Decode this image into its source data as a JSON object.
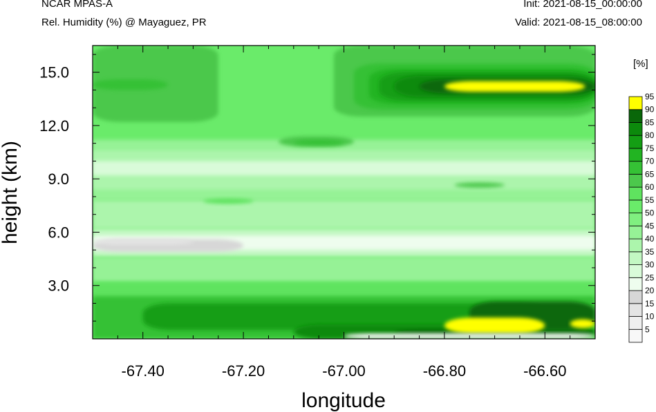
{
  "header": {
    "model": "NCAR MPAS-A",
    "subtitle": "Rel. Humidity (%) @ Mayaguez, PR",
    "init": "Init: 2021-08-15_00:00:00",
    "valid": "Valid: 2021-08-15_08:00:00"
  },
  "chart_data": {
    "type": "heatmap",
    "title": "Rel. Humidity (%) @ Mayaguez, PR",
    "xlabel": "longitude",
    "ylabel": "height (km)",
    "xlim": [
      -67.5,
      -66.5
    ],
    "ylim": [
      0,
      16.5
    ],
    "xticks": [
      -67.4,
      -67.2,
      -67.0,
      -66.8,
      -66.6
    ],
    "xtick_labels": [
      "-67.40",
      "-67.20",
      "-67.00",
      "-66.80",
      "-66.60"
    ],
    "yticks": [
      3,
      6,
      9,
      12,
      15
    ],
    "ytick_labels": [
      "3.0",
      "6.0",
      "9.0",
      "12.0",
      "15.0"
    ],
    "colorbar": {
      "units": "[%]",
      "levels": [
        5,
        10,
        15,
        20,
        25,
        30,
        35,
        40,
        45,
        50,
        55,
        60,
        65,
        70,
        75,
        80,
        85,
        90,
        95
      ],
      "colors": [
        "#f8f8f8",
        "#efefef",
        "#e4e4e4",
        "#d7d7d7",
        "#eefdee",
        "#d9fbd9",
        "#c3f8c3",
        "#acf5ac",
        "#96f296",
        "#80ef80",
        "#6aeb6a",
        "#5fe35f",
        "#4cc84c",
        "#35c135",
        "#22b422",
        "#149e14",
        "#0c8a0c",
        "#096709",
        "#ffff00"
      ]
    },
    "regions": [
      {
        "x": [
          -67.5,
          -66.5
        ],
        "y": [
          0,
          16.5
        ],
        "rh": 55
      },
      {
        "x": [
          -67.5,
          -66.5
        ],
        "y": [
          7.8,
          11.2
        ],
        "rh": 45
      },
      {
        "x": [
          -67.5,
          -66.5
        ],
        "y": [
          8.4,
          10.6
        ],
        "rh": 40
      },
      {
        "x": [
          -67.5,
          -66.5
        ],
        "y": [
          9.2,
          10.0
        ],
        "rh": 30
      },
      {
        "x": [
          -67.5,
          -66.5
        ],
        "y": [
          6.2,
          7.8
        ],
        "rh": 40
      },
      {
        "x": [
          -67.5,
          -66.5
        ],
        "y": [
          4.6,
          6.2
        ],
        "rh": 35
      },
      {
        "x": [
          -67.5,
          -66.5
        ],
        "y": [
          5.0,
          5.8
        ],
        "rh": 25
      },
      {
        "x": [
          -67.5,
          -67.2
        ],
        "y": [
          4.9,
          5.6
        ],
        "rh": 20
      },
      {
        "x": [
          -67.5,
          -67.3
        ],
        "y": [
          5.3,
          5.6
        ],
        "rh": 15
      },
      {
        "x": [
          -67.5,
          -66.5
        ],
        "y": [
          3.2,
          4.6
        ],
        "rh": 45
      },
      {
        "x": [
          -67.5,
          -66.5
        ],
        "y": [
          2.2,
          3.2
        ],
        "rh": 60
      },
      {
        "x": [
          -67.5,
          -66.5
        ],
        "y": [
          0,
          2.4
        ],
        "rh": 70
      },
      {
        "x": [
          -67.4,
          -66.6
        ],
        "y": [
          0.5,
          2.0
        ],
        "rh": 80
      },
      {
        "x": [
          -67.1,
          -66.5
        ],
        "y": [
          0,
          0.8
        ],
        "rh": 85
      },
      {
        "x": [
          -66.9,
          -66.5
        ],
        "y": [
          0.2,
          0.5
        ],
        "rh": 90
      },
      {
        "x": [
          -66.75,
          -66.5
        ],
        "y": [
          0.5,
          2.1
        ],
        "rh": 90
      },
      {
        "x": [
          -66.8,
          -66.6
        ],
        "y": [
          0.3,
          1.2
        ],
        "rh": 95
      },
      {
        "x": [
          -66.55,
          -66.5
        ],
        "y": [
          0.6,
          1.1
        ],
        "rh": 95
      },
      {
        "x": [
          -67.0,
          -66.5
        ],
        "y": [
          0,
          0.3
        ],
        "rh": 5
      },
      {
        "x": [
          -67.5,
          -67.25
        ],
        "y": [
          12.2,
          16.5
        ],
        "rh": 65
      },
      {
        "x": [
          -67.5,
          -67.35
        ],
        "y": [
          14.0,
          14.6
        ],
        "rh": 70
      },
      {
        "x": [
          -67.02,
          -66.5
        ],
        "y": [
          12.5,
          16.5
        ],
        "rh": 65
      },
      {
        "x": [
          -66.98,
          -66.5
        ],
        "y": [
          12.9,
          15.5
        ],
        "rh": 70
      },
      {
        "x": [
          -66.95,
          -66.5
        ],
        "y": [
          13.2,
          15.2
        ],
        "rh": 75
      },
      {
        "x": [
          -66.93,
          -66.5
        ],
        "y": [
          13.4,
          15.0
        ],
        "rh": 80
      },
      {
        "x": [
          -66.9,
          -66.5
        ],
        "y": [
          13.6,
          14.8
        ],
        "rh": 85
      },
      {
        "x": [
          -66.85,
          -66.5
        ],
        "y": [
          13.8,
          14.6
        ],
        "rh": 90
      },
      {
        "x": [
          -66.8,
          -66.52
        ],
        "y": [
          13.9,
          14.5
        ],
        "rh": 95
      },
      {
        "x": [
          -67.13,
          -66.98
        ],
        "y": [
          10.8,
          11.4
        ],
        "rh": 65
      },
      {
        "x": [
          -67.1,
          -67.0
        ],
        "y": [
          10.9,
          11.2
        ],
        "rh": 70
      },
      {
        "x": [
          -67.28,
          -67.18
        ],
        "y": [
          7.6,
          7.9
        ],
        "rh": 60
      },
      {
        "x": [
          -66.78,
          -66.68
        ],
        "y": [
          8.5,
          8.8
        ],
        "rh": 65
      }
    ]
  }
}
